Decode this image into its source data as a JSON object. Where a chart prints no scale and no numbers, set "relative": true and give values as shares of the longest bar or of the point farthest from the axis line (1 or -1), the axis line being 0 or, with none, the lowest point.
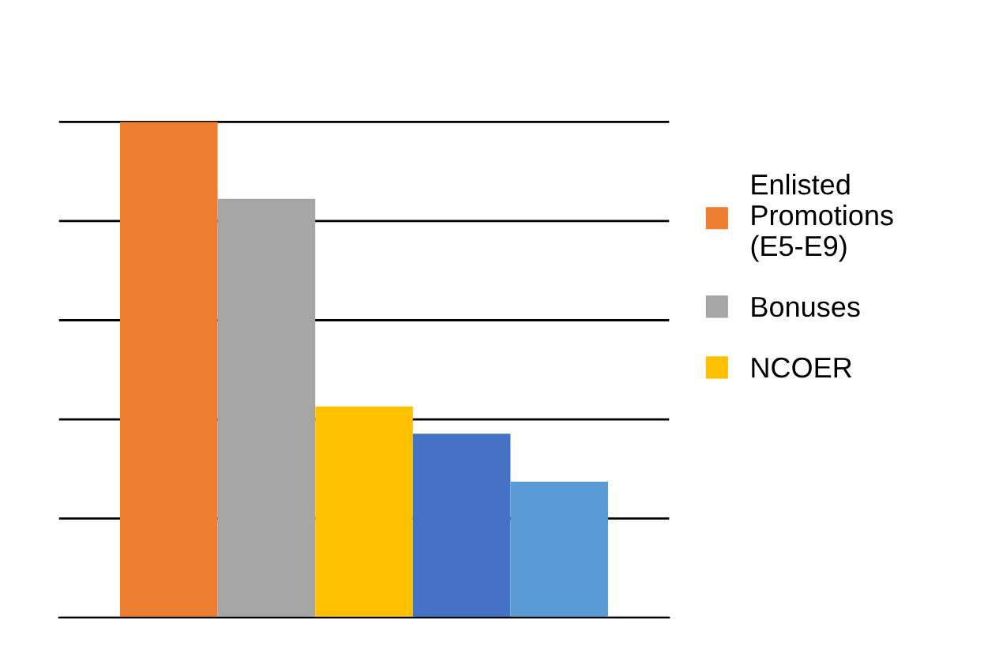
{
  "chart_data": {
    "type": "bar",
    "relative": true,
    "categories": [
      null
    ],
    "series": [
      {
        "name": "Enlisted Promotions (E5-E9)",
        "color": "#ed7d31",
        "values": [
          1
        ]
      },
      {
        "name": "Bonuses",
        "color": "#a5a5a5",
        "values": [
          0.845
        ]
      },
      {
        "name": "NCOER",
        "color": "#ffc000",
        "values": [
          0.426
        ]
      },
      {
        "color": "#4472c4",
        "values": [
          0.371
        ]
      },
      {
        "color": "#5b9bd5",
        "values": [
          0.274
        ]
      }
    ],
    "grid": "y",
    "legend": "right"
  }
}
